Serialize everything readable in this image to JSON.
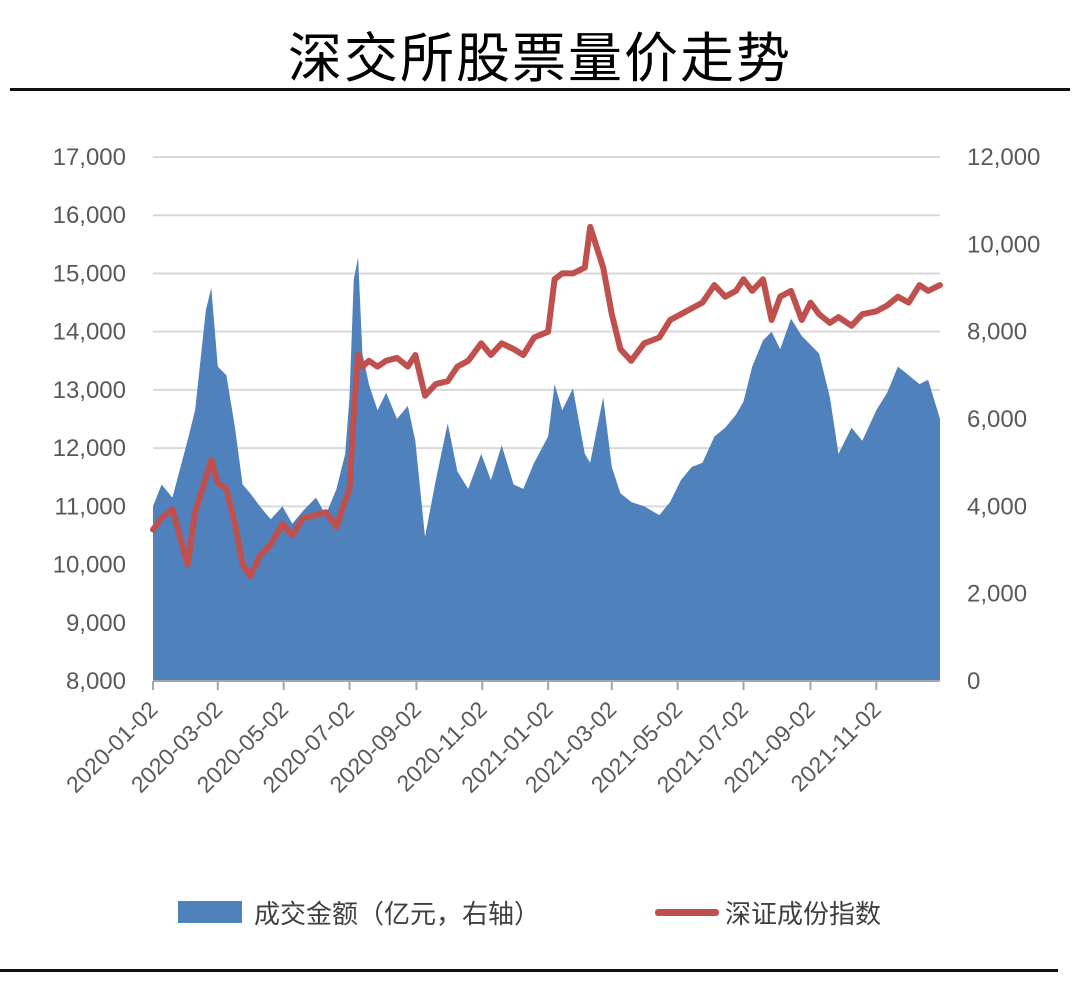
{
  "title": "深交所股票量价走势",
  "colors": {
    "area": "#4f81bd",
    "line": "#c0504d",
    "grid": "#d9d9d9",
    "axis": "#a6a6a6"
  },
  "chart_data": {
    "type": "area+line",
    "title": "深交所股票量价走势",
    "grid": true,
    "legend_position": "bottom",
    "left_axis": {
      "ylim": [
        8000,
        17000
      ],
      "ticks": [
        "8,000",
        "9,000",
        "10,000",
        "11,000",
        "12,000",
        "13,000",
        "14,000",
        "15,000",
        "16,000",
        "17,000"
      ]
    },
    "right_axis": {
      "ylim": [
        0,
        12000
      ],
      "ticks": [
        "0",
        "2,000",
        "4,000",
        "6,000",
        "8,000",
        "10,000",
        "12,000"
      ]
    },
    "x_ticks": [
      "2020-01-02",
      "2020-03-02",
      "2020-05-02",
      "2020-07-02",
      "2020-09-02",
      "2020-11-02",
      "2021-01-02",
      "2021-03-02",
      "2021-05-02",
      "2021-07-02",
      "2021-09-02",
      "2021-11-02"
    ],
    "series": [
      {
        "name": "成交金额（亿元，右轴）",
        "kind": "area",
        "axis": "right",
        "points": [
          [
            "2020-01-02",
            4000
          ],
          [
            "2020-01-10",
            4500
          ],
          [
            "2020-01-20",
            4200
          ],
          [
            "2020-02-03",
            5500
          ],
          [
            "2020-02-10",
            6200
          ],
          [
            "2020-02-20",
            8500
          ],
          [
            "2020-02-25",
            9000
          ],
          [
            "2020-03-02",
            7200
          ],
          [
            "2020-03-10",
            7000
          ],
          [
            "2020-03-18",
            5800
          ],
          [
            "2020-03-25",
            4500
          ],
          [
            "2020-04-01",
            4300
          ],
          [
            "2020-04-10",
            4000
          ],
          [
            "2020-04-20",
            3700
          ],
          [
            "2020-05-01",
            4000
          ],
          [
            "2020-05-10",
            3600
          ],
          [
            "2020-05-20",
            3900
          ],
          [
            "2020-06-01",
            4200
          ],
          [
            "2020-06-10",
            3800
          ],
          [
            "2020-06-20",
            4400
          ],
          [
            "2020-06-28",
            5200
          ],
          [
            "2020-07-02",
            6500
          ],
          [
            "2020-07-06",
            9200
          ],
          [
            "2020-07-10",
            9700
          ],
          [
            "2020-07-14",
            7500
          ],
          [
            "2020-07-20",
            6800
          ],
          [
            "2020-07-28",
            6200
          ],
          [
            "2020-08-05",
            6600
          ],
          [
            "2020-08-15",
            6000
          ],
          [
            "2020-08-25",
            6300
          ],
          [
            "2020-09-01",
            5500
          ],
          [
            "2020-09-10",
            3300
          ],
          [
            "2020-09-20",
            4600
          ],
          [
            "2020-10-01",
            5900
          ],
          [
            "2020-10-10",
            4800
          ],
          [
            "2020-10-20",
            4400
          ],
          [
            "2020-11-01",
            5200
          ],
          [
            "2020-11-10",
            4600
          ],
          [
            "2020-11-20",
            5400
          ],
          [
            "2020-12-01",
            4500
          ],
          [
            "2020-12-10",
            4400
          ],
          [
            "2020-12-20",
            5000
          ],
          [
            "2021-01-02",
            5600
          ],
          [
            "2021-01-08",
            6800
          ],
          [
            "2021-01-15",
            6200
          ],
          [
            "2021-01-25",
            6700
          ],
          [
            "2021-02-05",
            5200
          ],
          [
            "2021-02-10",
            5000
          ],
          [
            "2021-02-22",
            6500
          ],
          [
            "2021-03-02",
            4900
          ],
          [
            "2021-03-10",
            4300
          ],
          [
            "2021-03-20",
            4100
          ],
          [
            "2021-04-01",
            4000
          ],
          [
            "2021-04-15",
            3800
          ],
          [
            "2021-04-25",
            4100
          ],
          [
            "2021-05-05",
            4600
          ],
          [
            "2021-05-15",
            4900
          ],
          [
            "2021-05-25",
            5000
          ],
          [
            "2021-06-05",
            5600
          ],
          [
            "2021-06-15",
            5800
          ],
          [
            "2021-06-25",
            6100
          ],
          [
            "2021-07-02",
            6400
          ],
          [
            "2021-07-10",
            7200
          ],
          [
            "2021-07-20",
            7800
          ],
          [
            "2021-07-28",
            8000
          ],
          [
            "2021-08-05",
            7600
          ],
          [
            "2021-08-15",
            8300
          ],
          [
            "2021-08-25",
            7900
          ],
          [
            "2021-09-02",
            7700
          ],
          [
            "2021-09-10",
            7500
          ],
          [
            "2021-09-20",
            6500
          ],
          [
            "2021-09-28",
            5200
          ],
          [
            "2021-10-10",
            5800
          ],
          [
            "2021-10-20",
            5500
          ],
          [
            "2021-11-02",
            6200
          ],
          [
            "2021-11-12",
            6600
          ],
          [
            "2021-11-22",
            7200
          ],
          [
            "2021-12-02",
            7000
          ],
          [
            "2021-12-12",
            6800
          ],
          [
            "2021-12-20",
            6900
          ],
          [
            "2021-12-31",
            6000
          ]
        ]
      },
      {
        "name": "深证成份指数",
        "kind": "line",
        "axis": "left",
        "points": [
          [
            "2020-01-02",
            10600
          ],
          [
            "2020-01-10",
            10800
          ],
          [
            "2020-01-20",
            10950
          ],
          [
            "2020-02-03",
            10000
          ],
          [
            "2020-02-10",
            10900
          ],
          [
            "2020-02-20",
            11500
          ],
          [
            "2020-02-25",
            11800
          ],
          [
            "2020-03-02",
            11400
          ],
          [
            "2020-03-10",
            11300
          ],
          [
            "2020-03-18",
            10700
          ],
          [
            "2020-03-25",
            10000
          ],
          [
            "2020-04-01",
            9800
          ],
          [
            "2020-04-10",
            10150
          ],
          [
            "2020-04-20",
            10350
          ],
          [
            "2020-05-01",
            10700
          ],
          [
            "2020-05-10",
            10500
          ],
          [
            "2020-05-20",
            10800
          ],
          [
            "2020-06-01",
            10850
          ],
          [
            "2020-06-10",
            10900
          ],
          [
            "2020-06-20",
            10650
          ],
          [
            "2020-06-28",
            11100
          ],
          [
            "2020-07-02",
            11300
          ],
          [
            "2020-07-06",
            12600
          ],
          [
            "2020-07-10",
            13600
          ],
          [
            "2020-07-14",
            13400
          ],
          [
            "2020-07-20",
            13500
          ],
          [
            "2020-07-28",
            13400
          ],
          [
            "2020-08-05",
            13500
          ],
          [
            "2020-08-15",
            13550
          ],
          [
            "2020-08-25",
            13400
          ],
          [
            "2020-09-01",
            13600
          ],
          [
            "2020-09-10",
            12900
          ],
          [
            "2020-09-20",
            13100
          ],
          [
            "2020-10-01",
            13150
          ],
          [
            "2020-10-10",
            13400
          ],
          [
            "2020-10-20",
            13500
          ],
          [
            "2020-11-01",
            13800
          ],
          [
            "2020-11-10",
            13600
          ],
          [
            "2020-11-20",
            13800
          ],
          [
            "2020-12-01",
            13700
          ],
          [
            "2020-12-10",
            13600
          ],
          [
            "2020-12-20",
            13900
          ],
          [
            "2021-01-02",
            14000
          ],
          [
            "2021-01-08",
            14900
          ],
          [
            "2021-01-15",
            15000
          ],
          [
            "2021-01-25",
            15000
          ],
          [
            "2021-02-05",
            15100
          ],
          [
            "2021-02-10",
            15800
          ],
          [
            "2021-02-22",
            15100
          ],
          [
            "2021-03-02",
            14300
          ],
          [
            "2021-03-10",
            13700
          ],
          [
            "2021-03-20",
            13500
          ],
          [
            "2021-04-01",
            13800
          ],
          [
            "2021-04-15",
            13900
          ],
          [
            "2021-04-25",
            14200
          ],
          [
            "2021-05-05",
            14300
          ],
          [
            "2021-05-15",
            14400
          ],
          [
            "2021-05-25",
            14500
          ],
          [
            "2021-06-05",
            14800
          ],
          [
            "2021-06-15",
            14600
          ],
          [
            "2021-06-25",
            14700
          ],
          [
            "2021-07-02",
            14900
          ],
          [
            "2021-07-10",
            14700
          ],
          [
            "2021-07-20",
            14900
          ],
          [
            "2021-07-28",
            14200
          ],
          [
            "2021-08-05",
            14600
          ],
          [
            "2021-08-15",
            14700
          ],
          [
            "2021-08-25",
            14200
          ],
          [
            "2021-09-02",
            14500
          ],
          [
            "2021-09-10",
            14300
          ],
          [
            "2021-09-20",
            14150
          ],
          [
            "2021-09-28",
            14250
          ],
          [
            "2021-10-10",
            14100
          ],
          [
            "2021-10-20",
            14300
          ],
          [
            "2021-11-02",
            14350
          ],
          [
            "2021-11-12",
            14450
          ],
          [
            "2021-11-22",
            14600
          ],
          [
            "2021-12-02",
            14500
          ],
          [
            "2021-12-12",
            14800
          ],
          [
            "2021-12-20",
            14700
          ],
          [
            "2021-12-31",
            14800
          ]
        ]
      }
    ]
  }
}
